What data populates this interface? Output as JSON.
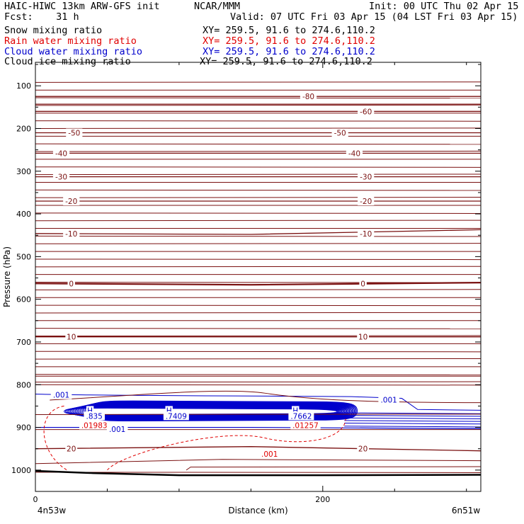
{
  "header": {
    "model": "HAIC-HIWC 13km ARW-GFS init",
    "org": "NCAR/MMM",
    "init": "Init: 00 UTC Thu 02 Apr 15",
    "fcst": "Fcst:    31 h",
    "valid": "Valid: 07 UTC Fri 03 Apr 15 (04 LST Fri 03 Apr 15)"
  },
  "fields": [
    {
      "name": "Snow mixing ratio",
      "xy": "XY= 259.5, 91.6 to 274.6,110.2",
      "color": "#000000"
    },
    {
      "name": "Rain water mixing ratio",
      "xy": "XY= 259.5, 91.6 to 274.6,110.2",
      "color": "#e00000"
    },
    {
      "name": "Cloud water mixing ratio",
      "xy": "XY= 259.5, 91.6 to 274.6,110.2",
      "color": "#0000cc"
    },
    {
      "name": "Cloud ice mixing ratio",
      "xy": "XY= 259.5, 91.6 to 274.6,110.2",
      "color": "#000000"
    }
  ],
  "chart_data": {
    "type": "line",
    "xlabel": "Distance (km)",
    "ylabel": "Pressure (hPa)",
    "xlim": [
      0,
      310
    ],
    "ylim": [
      45,
      1050
    ],
    "x_ticks": [
      0,
      200
    ],
    "y_ticks": [
      100,
      200,
      300,
      400,
      500,
      600,
      700,
      800,
      900,
      1000
    ],
    "left_endpoint": "4n53w",
    "right_endpoint": "6n51w",
    "colors": {
      "temperature": "#7a1010",
      "cloud_water": "#0000cc",
      "rain": "#e00000",
      "ground": "#000000"
    },
    "temperature_isotherms": [
      {
        "level": -80,
        "x": [
          0,
          310
        ],
        "p": [
          125,
          125
        ]
      },
      {
        "level": -70,
        "x": [
          0,
          310
        ],
        "p": [
          143,
          143
        ]
      },
      {
        "level": -60,
        "x": [
          0,
          310
        ],
        "p": [
          160,
          160
        ]
      },
      {
        "level": -50,
        "x": [
          0,
          310
        ],
        "p": [
          210,
          210
        ]
      },
      {
        "level": -40,
        "x": [
          0,
          310
        ],
        "p": [
          258,
          258
        ]
      },
      {
        "level": -30,
        "x": [
          0,
          310
        ],
        "p": [
          313,
          313
        ]
      },
      {
        "level": -20,
        "x": [
          0,
          310
        ],
        "p": [
          370,
          370
        ]
      },
      {
        "level": -10,
        "x": [
          0,
          150,
          310
        ],
        "p": [
          446,
          448,
          437
        ]
      },
      {
        "level": 0,
        "x": [
          0,
          150,
          310
        ],
        "p": [
          563,
          566,
          561
        ]
      },
      {
        "level": 10,
        "x": [
          0,
          310
        ],
        "p": [
          688,
          688
        ]
      },
      {
        "level": 20,
        "x": [
          0,
          150,
          310
        ],
        "p": [
          950,
          945,
          955
        ]
      }
    ],
    "contour_labels": [
      {
        "text": "-80",
        "x": 190,
        "p": 125,
        "color": "#7a1010"
      },
      {
        "text": "-60",
        "x": 230,
        "p": 160,
        "color": "#7a1010"
      },
      {
        "text": "-50",
        "x": 27,
        "p": 210,
        "color": "#7a1010"
      },
      {
        "text": "-50",
        "x": 212,
        "p": 210,
        "color": "#7a1010"
      },
      {
        "text": "-40",
        "x": 18,
        "p": 258,
        "color": "#7a1010"
      },
      {
        "text": "-40",
        "x": 222,
        "p": 258,
        "color": "#7a1010"
      },
      {
        "text": "-30",
        "x": 18,
        "p": 313,
        "color": "#7a1010"
      },
      {
        "text": "-30",
        "x": 230,
        "p": 313,
        "color": "#7a1010"
      },
      {
        "text": "-20",
        "x": 25,
        "p": 370,
        "color": "#7a1010"
      },
      {
        "text": "-20",
        "x": 230,
        "p": 370,
        "color": "#7a1010"
      },
      {
        "text": "-10",
        "x": 25,
        "p": 446,
        "color": "#7a1010"
      },
      {
        "text": "-10",
        "x": 230,
        "p": 446,
        "color": "#7a1010"
      },
      {
        "text": "0",
        "x": 25,
        "p": 563,
        "color": "#7a1010"
      },
      {
        "text": "0",
        "x": 228,
        "p": 563,
        "color": "#7a1010"
      },
      {
        "text": "10",
        "x": 25,
        "p": 688,
        "color": "#7a1010"
      },
      {
        "text": "10",
        "x": 228,
        "p": 688,
        "color": "#7a1010"
      },
      {
        "text": "20",
        "x": 25,
        "p": 950,
        "color": "#7a1010"
      },
      {
        "text": "20",
        "x": 228,
        "p": 950,
        "color": "#7a1010"
      },
      {
        "text": ".001",
        "x": 18,
        "p": 824,
        "color": "#0000cc"
      },
      {
        "text": ".001",
        "x": 246,
        "p": 835,
        "color": "#0000cc"
      },
      {
        "text": ".001",
        "x": 57,
        "p": 904,
        "color": "#0000cc"
      },
      {
        "text": ".001",
        "x": 163,
        "p": 962,
        "color": "#e00000"
      },
      {
        "text": "H",
        "x": 38,
        "p": 860,
        "color": "#0000cc"
      },
      {
        "text": ".835",
        "x": 41,
        "p": 873,
        "color": "#0000cc"
      },
      {
        "text": ".01983",
        "x": 41,
        "p": 895,
        "color": "#e00000"
      },
      {
        "text": "H",
        "x": 93,
        "p": 860,
        "color": "#0000cc"
      },
      {
        "text": ".7409",
        "x": 98,
        "p": 873,
        "color": "#0000cc"
      },
      {
        "text": "H",
        "x": 181,
        "p": 860,
        "color": "#0000cc"
      },
      {
        "text": ".7662",
        "x": 185,
        "p": 873,
        "color": "#0000cc"
      },
      {
        "text": ".01257",
        "x": 188,
        "p": 895,
        "color": "#e00000"
      }
    ]
  }
}
